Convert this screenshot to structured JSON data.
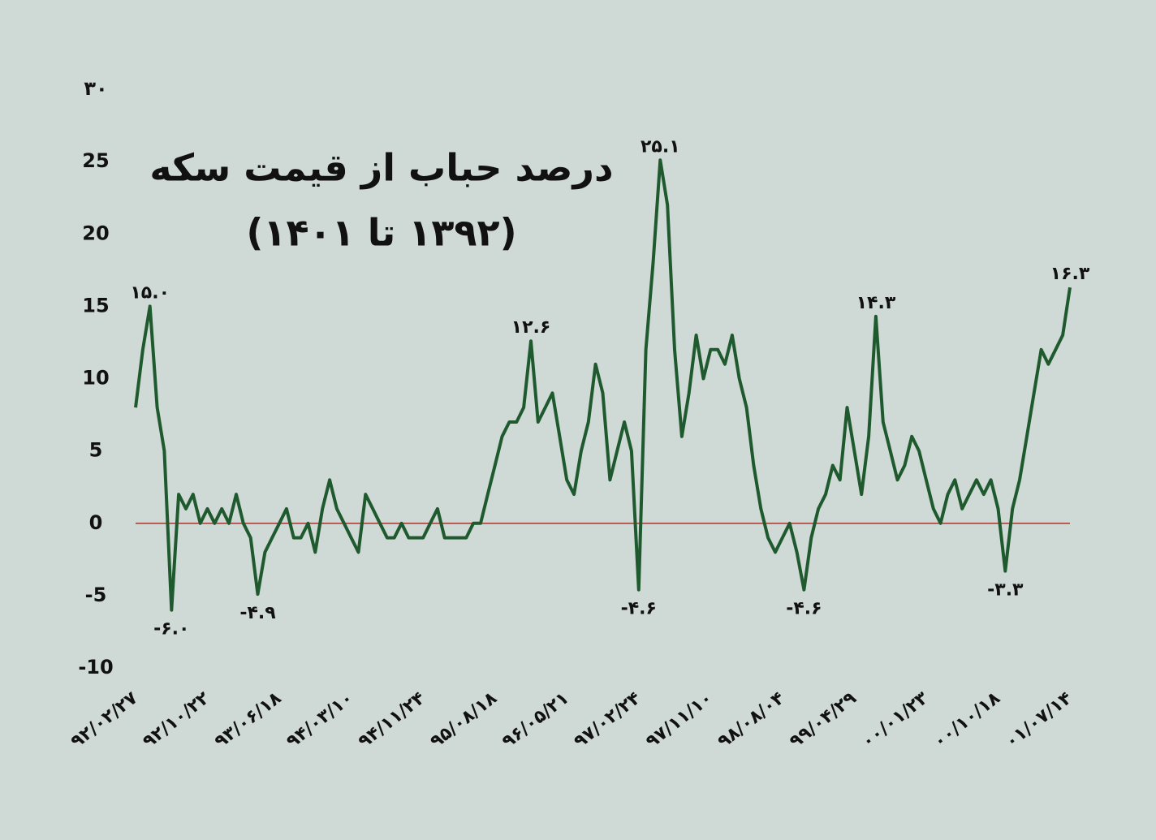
{
  "chart_data": {
    "type": "line",
    "title": "درصد حباب از قیمت سکه",
    "subtitle": "(۱۳۹۲ تا ۱۴۰۱)",
    "categories": [
      "۹۲/۰۲/۲۷",
      null,
      null,
      null,
      null,
      null,
      null,
      null,
      null,
      null,
      "۹۲/۱۰/۲۲",
      null,
      null,
      null,
      null,
      null,
      null,
      null,
      null,
      null,
      "۹۳/۰۶/۱۸",
      null,
      null,
      null,
      null,
      null,
      null,
      null,
      null,
      null,
      "۹۴/۰۳/۱۰",
      null,
      null,
      null,
      null,
      null,
      null,
      null,
      null,
      null,
      "۹۴/۱۱/۲۴",
      null,
      null,
      null,
      null,
      null,
      null,
      null,
      null,
      null,
      "۹۵/۰۸/۱۸",
      null,
      null,
      null,
      null,
      null,
      null,
      null,
      null,
      null,
      "۹۶/۰۵/۲۱",
      null,
      null,
      null,
      null,
      null,
      null,
      null,
      null,
      null,
      "۹۷/۰۲/۲۴",
      null,
      null,
      null,
      null,
      null,
      null,
      null,
      null,
      null,
      "۹۷/۱۱/۱۰",
      null,
      null,
      null,
      null,
      null,
      null,
      null,
      null,
      null,
      "۹۸/۰۸/۰۴",
      null,
      null,
      null,
      null,
      null,
      null,
      null,
      null,
      null,
      "۹۹/۰۴/۲۹",
      null,
      null,
      null,
      null,
      null,
      null,
      null,
      null,
      null,
      "۰۰/۰۱/۲۳",
      null,
      null,
      null,
      null,
      null,
      null,
      null,
      null,
      null,
      "۰۰/۱۰/۱۸",
      null,
      null,
      null,
      null,
      null,
      null,
      null,
      null,
      null,
      "۰۱/۰۷/۱۴"
    ],
    "values": [
      8,
      12,
      15.0,
      8,
      5,
      -6.0,
      2,
      1,
      2,
      0,
      1,
      0,
      1,
      0,
      2,
      0,
      -1,
      -4.9,
      -2,
      -1,
      0,
      1,
      -1,
      -1,
      0,
      -2,
      1,
      3,
      1,
      0,
      -1,
      -2,
      2,
      1,
      0,
      -1,
      -1,
      0,
      -1,
      -1,
      -1,
      0,
      1,
      -1,
      -1,
      -1,
      -1,
      0,
      0,
      2,
      4,
      6,
      7,
      7,
      8,
      12.6,
      7,
      8,
      9,
      6,
      3,
      2,
      5,
      7,
      11,
      9,
      3,
      5,
      7,
      5,
      -4.6,
      12,
      18,
      25.1,
      22,
      12,
      6,
      9,
      13,
      10,
      12,
      12,
      11,
      13,
      10,
      8,
      4,
      1,
      -1,
      -2,
      -1,
      0,
      -2,
      -4.6,
      -1,
      1,
      2,
      4,
      3,
      8,
      5,
      2,
      6,
      14.3,
      7,
      5,
      3,
      4,
      6,
      5,
      3,
      1,
      0,
      2,
      3,
      1,
      2,
      3,
      2,
      3,
      1,
      -3.3,
      1,
      3,
      6,
      9,
      12,
      11,
      12,
      13,
      16.3
    ],
    "value_labels": [
      null,
      null,
      "۱۵.۰",
      null,
      null,
      "-۶.۰",
      null,
      null,
      null,
      null,
      null,
      null,
      null,
      null,
      null,
      null,
      null,
      "-۴.۹",
      null,
      null,
      null,
      null,
      null,
      null,
      null,
      null,
      null,
      null,
      null,
      null,
      null,
      null,
      null,
      null,
      null,
      null,
      null,
      null,
      null,
      null,
      null,
      null,
      null,
      null,
      null,
      null,
      null,
      null,
      null,
      null,
      null,
      null,
      null,
      null,
      null,
      "۱۲.۶",
      null,
      null,
      null,
      null,
      null,
      null,
      null,
      null,
      null,
      null,
      null,
      null,
      null,
      null,
      "-۴.۶",
      null,
      null,
      "۲۵.۱",
      null,
      null,
      null,
      null,
      null,
      null,
      null,
      null,
      null,
      null,
      null,
      null,
      null,
      null,
      null,
      null,
      null,
      null,
      null,
      "-۴.۶",
      null,
      null,
      null,
      null,
      null,
      null,
      null,
      null,
      null,
      "۱۴.۳",
      null,
      null,
      null,
      null,
      null,
      null,
      null,
      null,
      null,
      null,
      null,
      null,
      null,
      null,
      null,
      null,
      null,
      "-۳.۳",
      null,
      null,
      null,
      null,
      null,
      null,
      null,
      null,
      "۱۶.۳"
    ],
    "color": "#1f5a2f",
    "ylim": [
      -10,
      30
    ],
    "yticks": [
      -10,
      -5,
      0,
      5,
      10,
      15,
      20,
      25,
      {
        "value": 30,
        "label": "۳۰"
      }
    ]
  }
}
